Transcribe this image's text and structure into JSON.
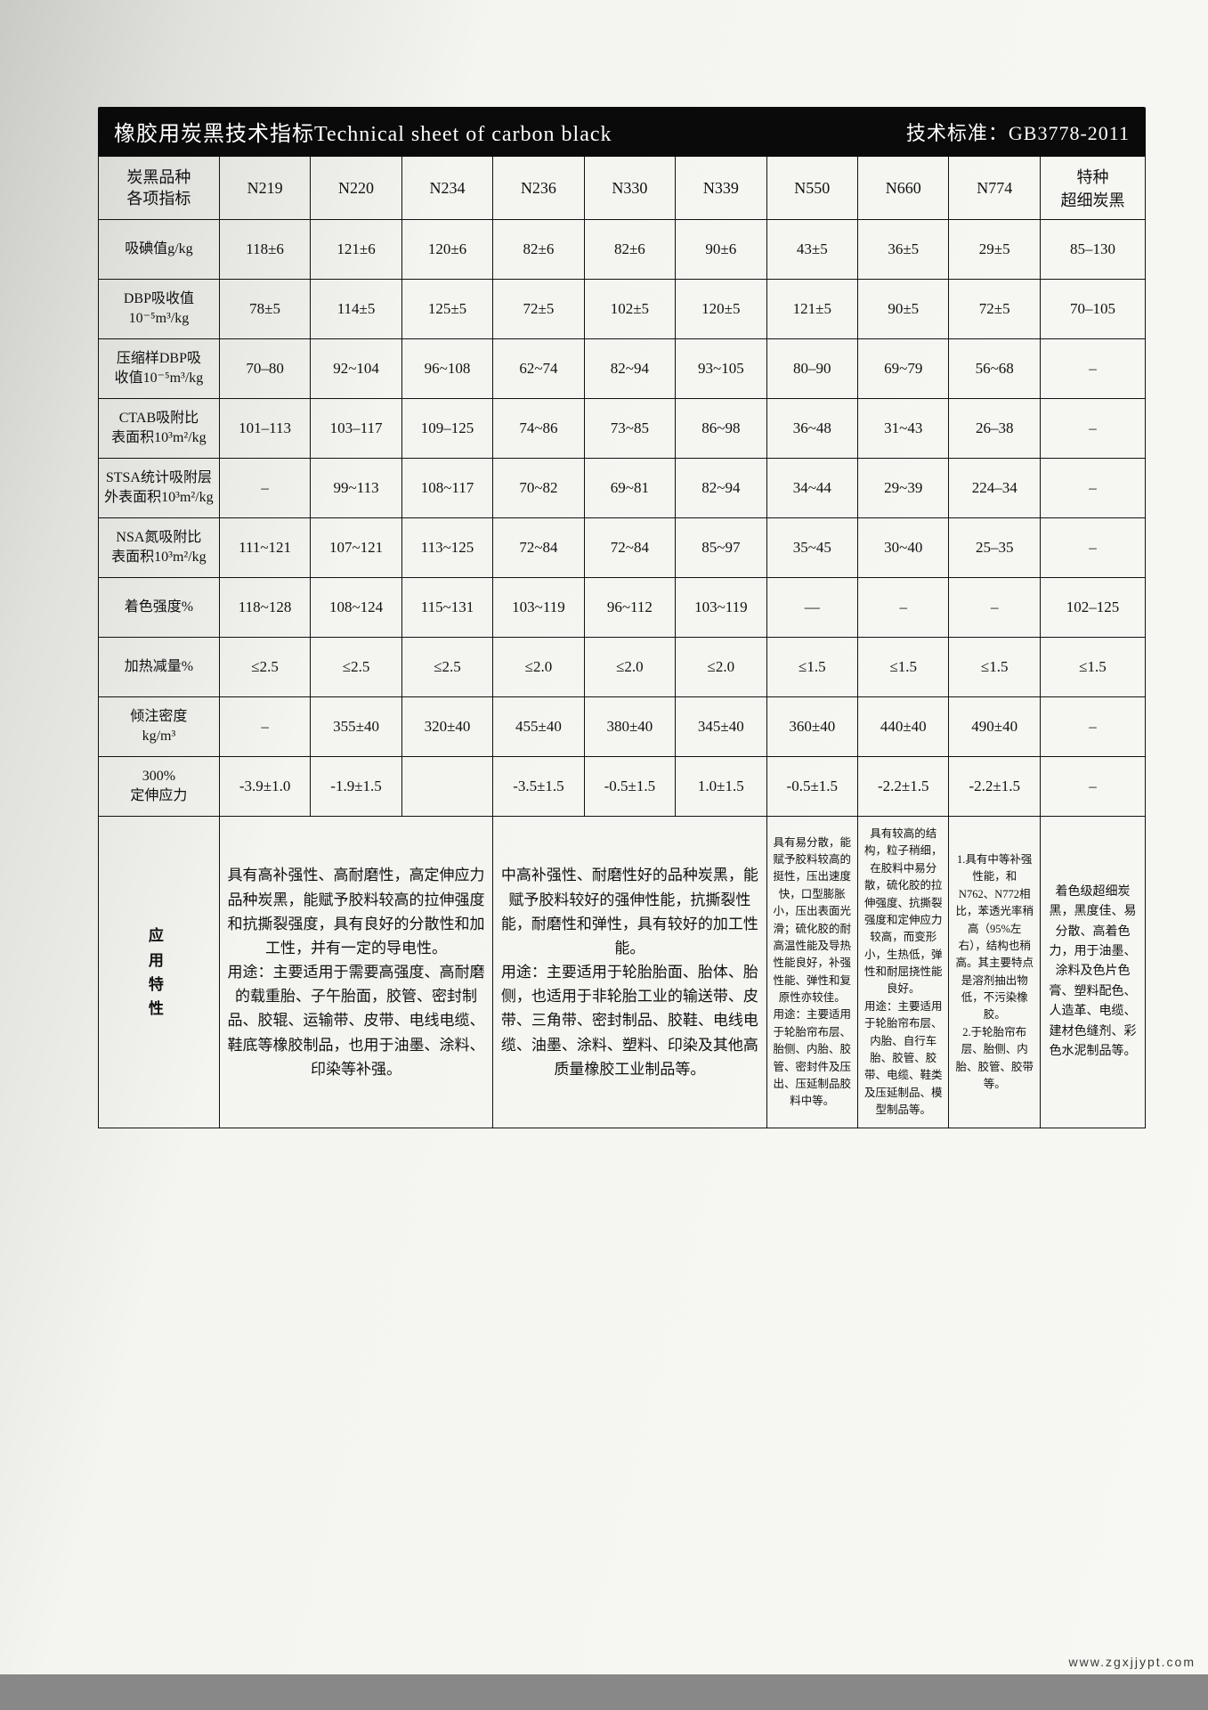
{
  "header": {
    "title_cn": "橡胶用炭黑技术指标",
    "title_en": "Technical sheet of carbon black",
    "std_label": "技术标准：",
    "std_value": "GB3778-2011"
  },
  "columns_label": "炭黑品种\n各项指标",
  "grades": [
    "N219",
    "N220",
    "N234",
    "N236",
    "N330",
    "N339",
    "N550",
    "N660",
    "N774",
    "特种\n超细炭黑"
  ],
  "rows": [
    {
      "label": "吸碘值g/kg",
      "vals": [
        "118±6",
        "121±6",
        "120±6",
        "82±6",
        "82±6",
        "90±6",
        "43±5",
        "36±5",
        "29±5",
        "85–130"
      ]
    },
    {
      "label": "DBP吸收值\n10⁻⁵m³/kg",
      "vals": [
        "78±5",
        "114±5",
        "125±5",
        "72±5",
        "102±5",
        "120±5",
        "121±5",
        "90±5",
        "72±5",
        "70–105"
      ]
    },
    {
      "label": "压缩样DBP吸\n收值10⁻⁵m³/kg",
      "vals": [
        "70–80",
        "92~104",
        "96~108",
        "62~74",
        "82~94",
        "93~105",
        "80–90",
        "69~79",
        "56~68",
        "–"
      ]
    },
    {
      "label": "CTAB吸附比\n表面积10³m²/kg",
      "vals": [
        "101–113",
        "103–117",
        "109–125",
        "74~86",
        "73~85",
        "86~98",
        "36~48",
        "31~43",
        "26–38",
        "–"
      ]
    },
    {
      "label": "STSA统计吸附层\n外表面积10³m²/kg",
      "vals": [
        "–",
        "99~113",
        "108~117",
        "70~82",
        "69~81",
        "82~94",
        "34~44",
        "29~39",
        "224–34",
        "–"
      ]
    },
    {
      "label": "NSA氮吸附比\n表面积10³m²/kg",
      "vals": [
        "111~121",
        "107~121",
        "113~125",
        "72~84",
        "72~84",
        "85~97",
        "35~45",
        "30~40",
        "25–35",
        "–"
      ]
    },
    {
      "label": "着色强度%",
      "vals": [
        "118~128",
        "108~124",
        "115~131",
        "103~119",
        "96~112",
        "103~119",
        "—",
        "–",
        "–",
        "102–125"
      ]
    },
    {
      "label": "加热减量%",
      "vals": [
        "≤2.5",
        "≤2.5",
        "≤2.5",
        "≤2.0",
        "≤2.0",
        "≤2.0",
        "≤1.5",
        "≤1.5",
        "≤1.5",
        "≤1.5"
      ]
    },
    {
      "label": "倾注密度\nkg/m³",
      "vals": [
        "–",
        "355±40",
        "320±40",
        "455±40",
        "380±40",
        "345±40",
        "360±40",
        "440±40",
        "490±40",
        "–"
      ]
    },
    {
      "label": "300%\n定伸应力",
      "vals": [
        "-3.9±1.0",
        "-1.9±1.5",
        "",
        "-3.5±1.5",
        "-0.5±1.5",
        "1.0±1.5",
        "-0.5±1.5",
        "-2.2±1.5",
        "-2.2±1.5",
        "–"
      ]
    }
  ],
  "application": {
    "label": "应\n用\n特\n性",
    "blocks": {
      "b1": "具有高补强性、高耐磨性，高定伸应力品种炭黑，能赋予胶料较高的拉伸强度和抗撕裂强度，具有良好的分散性和加工性，并有一定的导电性。\n用途：主要适用于需要高强度、高耐磨的载重胎、子午胎面，胶管、密封制品、胶辊、运输带、皮带、电线电缆、鞋底等橡胶制品，也用于油墨、涂料、印染等补强。",
      "b2": "中高补强性、耐磨性好的品种炭黑，能赋予胶料较好的强伸性能，抗撕裂性能，耐磨性和弹性，具有较好的加工性能。\n用途：主要适用于轮胎胎面、胎体、胎侧，也适用于非轮胎工业的输送带、皮带、三角带、密封制品、胶鞋、电线电缆、油墨、涂料、塑料、印染及其他高质量橡胶工业制品等。",
      "b3": "具有易分散，能赋予胶料较高的挺性，压出速度快，口型膨胀小，压出表面光滑；硫化胶的耐高温性能及导热性能良好，补强性能、弹性和复原性亦较佳。\n用途：主要适用于轮胎帘布层、胎侧、内胎、胶管、密封件及压出、压延制品胶料中等。",
      "b4": "具有较高的结构，粒子稍细，在胶料中易分散，硫化胶的拉伸强度、抗撕裂强度和定伸应力较高，而变形小，生热低，弹性和耐屈挠性能良好。\n用途：主要适用于轮胎帘布层、内胎、自行车胎、胶管、胶带、电缆、鞋类及压延制品、模型制品等。",
      "b5": "1.具有中等补强性能，和N762、N772相比，苯透光率稍高（95%左右），结构也稍高。其主要特点是溶剂抽出物低，不污染橡胶。\n2.于轮胎帘布层、胎侧、内胎、胶管、胶带等。",
      "b6": "着色级超细炭黑，黑度佳、易分散、高着色力，用于油墨、涂料及色片色膏、塑料配色、人造革、电缆、建材色缝剂、彩色水泥制品等。"
    }
  },
  "watermark": "www.zgxjjypt.com",
  "style": {
    "header_bg": "#0a0a0a",
    "header_fg": "#ffffff",
    "border_color": "#111111",
    "page_bg_stops": [
      "#c9c9c5",
      "#e0e0dc",
      "#f4f4f0",
      "#f7f7f3"
    ],
    "font_body_pt": 13,
    "font_header_pt": 18
  }
}
